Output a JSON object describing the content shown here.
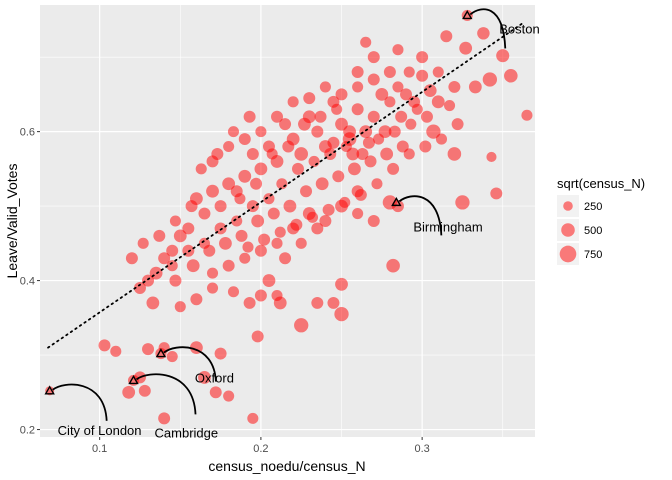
{
  "chart_data": {
    "type": "scatter",
    "xlabel": "census_noedu/census_N",
    "ylabel": "Leave/Valid_Votes",
    "xlim": [
      0.063,
      0.37
    ],
    "ylim": [
      0.19,
      0.77
    ],
    "x_ticks": [
      0.1,
      0.2,
      0.3
    ],
    "x_tick_labels": [
      "0.1",
      "0.2",
      "0.3"
    ],
    "y_ticks": [
      0.2,
      0.4,
      0.6
    ],
    "y_tick_labels": [
      "0.2",
      "0.4",
      "0.6"
    ],
    "grid": true,
    "point_color": "#ff0000",
    "point_opacity": 0.5,
    "background_color": "#ebebeb",
    "trend_line": {
      "style": "dotted",
      "color": "#000000",
      "from": [
        0.068,
        0.31
      ],
      "to": [
        0.362,
        0.745
      ]
    },
    "legend": {
      "title": "sqrt(census_N)",
      "placement": "right",
      "entries": [
        {
          "label": "250",
          "size_value": 250
        },
        {
          "label": "500",
          "size_value": 500
        },
        {
          "label": "750",
          "size_value": 750
        }
      ]
    },
    "annotations": [
      {
        "label": "Boston",
        "x": 0.328,
        "y": 0.756
      },
      {
        "label": "Birmingham",
        "x": 0.284,
        "y": 0.505
      },
      {
        "label": "Oxford",
        "x": 0.138,
        "y": 0.302
      },
      {
        "label": "Cambridge",
        "x": 0.121,
        "y": 0.266
      },
      {
        "label": "City of London",
        "x": 0.069,
        "y": 0.252
      }
    ],
    "points": [
      [
        0.328,
        0.756,
        300
      ],
      [
        0.315,
        0.728,
        350
      ],
      [
        0.327,
        0.712,
        400
      ],
      [
        0.338,
        0.732,
        380
      ],
      [
        0.35,
        0.702,
        420
      ],
      [
        0.355,
        0.675,
        450
      ],
      [
        0.342,
        0.67,
        500
      ],
      [
        0.333,
        0.66,
        400
      ],
      [
        0.365,
        0.622,
        300
      ],
      [
        0.343,
        0.566,
        250
      ],
      [
        0.346,
        0.517,
        350
      ],
      [
        0.325,
        0.505,
        500
      ],
      [
        0.32,
        0.57,
        450
      ],
      [
        0.307,
        0.6,
        500
      ],
      [
        0.31,
        0.64,
        400
      ],
      [
        0.32,
        0.66,
        350
      ],
      [
        0.31,
        0.68,
        300
      ],
      [
        0.3,
        0.7,
        350
      ],
      [
        0.292,
        0.68,
        300
      ],
      [
        0.305,
        0.655,
        400
      ],
      [
        0.295,
        0.64,
        350
      ],
      [
        0.285,
        0.66,
        300
      ],
      [
        0.28,
        0.68,
        350
      ],
      [
        0.275,
        0.65,
        400
      ],
      [
        0.27,
        0.62,
        350
      ],
      [
        0.265,
        0.6,
        400
      ],
      [
        0.26,
        0.63,
        350
      ],
      [
        0.255,
        0.59,
        450
      ],
      [
        0.25,
        0.61,
        400
      ],
      [
        0.245,
        0.64,
        350
      ],
      [
        0.24,
        0.58,
        400
      ],
      [
        0.235,
        0.6,
        350
      ],
      [
        0.23,
        0.62,
        400
      ],
      [
        0.225,
        0.57,
        450
      ],
      [
        0.22,
        0.59,
        400
      ],
      [
        0.215,
        0.61,
        350
      ],
      [
        0.21,
        0.56,
        400
      ],
      [
        0.205,
        0.58,
        350
      ],
      [
        0.2,
        0.55,
        400
      ],
      [
        0.195,
        0.57,
        350
      ],
      [
        0.19,
        0.54,
        400
      ],
      [
        0.185,
        0.52,
        350
      ],
      [
        0.18,
        0.53,
        400
      ],
      [
        0.175,
        0.5,
        350
      ],
      [
        0.17,
        0.52,
        400
      ],
      [
        0.165,
        0.49,
        350
      ],
      [
        0.16,
        0.51,
        400
      ],
      [
        0.155,
        0.47,
        350
      ],
      [
        0.15,
        0.46,
        400
      ],
      [
        0.145,
        0.44,
        350
      ],
      [
        0.14,
        0.43,
        350
      ],
      [
        0.135,
        0.41,
        400
      ],
      [
        0.13,
        0.4,
        350
      ],
      [
        0.125,
        0.39,
        350
      ],
      [
        0.133,
        0.37,
        400
      ],
      [
        0.147,
        0.4,
        350
      ],
      [
        0.158,
        0.42,
        400
      ],
      [
        0.168,
        0.44,
        350
      ],
      [
        0.178,
        0.45,
        400
      ],
      [
        0.188,
        0.46,
        350
      ],
      [
        0.198,
        0.48,
        400
      ],
      [
        0.208,
        0.49,
        350
      ],
      [
        0.218,
        0.5,
        400
      ],
      [
        0.228,
        0.52,
        350
      ],
      [
        0.238,
        0.53,
        400
      ],
      [
        0.248,
        0.54,
        350
      ],
      [
        0.258,
        0.55,
        400
      ],
      [
        0.268,
        0.56,
        350
      ],
      [
        0.278,
        0.57,
        400
      ],
      [
        0.288,
        0.58,
        350
      ],
      [
        0.213,
        0.53,
        300
      ],
      [
        0.223,
        0.55,
        350
      ],
      [
        0.233,
        0.56,
        300
      ],
      [
        0.243,
        0.57,
        350
      ],
      [
        0.253,
        0.58,
        300
      ],
      [
        0.263,
        0.57,
        350
      ],
      [
        0.273,
        0.59,
        300
      ],
      [
        0.283,
        0.6,
        350
      ],
      [
        0.293,
        0.61,
        300
      ],
      [
        0.303,
        0.62,
        350
      ],
      [
        0.2,
        0.6,
        300
      ],
      [
        0.21,
        0.62,
        350
      ],
      [
        0.22,
        0.64,
        300
      ],
      [
        0.23,
        0.645,
        350
      ],
      [
        0.24,
        0.66,
        300
      ],
      [
        0.25,
        0.65,
        350
      ],
      [
        0.26,
        0.66,
        300
      ],
      [
        0.27,
        0.67,
        350
      ],
      [
        0.28,
        0.64,
        300
      ],
      [
        0.29,
        0.65,
        350
      ],
      [
        0.205,
        0.51,
        300
      ],
      [
        0.195,
        0.5,
        350
      ],
      [
        0.185,
        0.48,
        300
      ],
      [
        0.175,
        0.47,
        350
      ],
      [
        0.165,
        0.45,
        300
      ],
      [
        0.155,
        0.44,
        350
      ],
      [
        0.145,
        0.42,
        300
      ],
      [
        0.17,
        0.56,
        350
      ],
      [
        0.18,
        0.58,
        300
      ],
      [
        0.19,
        0.59,
        350
      ],
      [
        0.24,
        0.48,
        350
      ],
      [
        0.25,
        0.5,
        400
      ],
      [
        0.26,
        0.52,
        350
      ],
      [
        0.23,
        0.49,
        400
      ],
      [
        0.22,
        0.47,
        350
      ],
      [
        0.21,
        0.45,
        300
      ],
      [
        0.2,
        0.44,
        350
      ],
      [
        0.19,
        0.43,
        300
      ],
      [
        0.18,
        0.42,
        350
      ],
      [
        0.17,
        0.41,
        300
      ],
      [
        0.205,
        0.4,
        400
      ],
      [
        0.215,
        0.43,
        350
      ],
      [
        0.225,
        0.45,
        300
      ],
      [
        0.235,
        0.47,
        350
      ],
      [
        0.163,
        0.55,
        300
      ],
      [
        0.173,
        0.57,
        350
      ],
      [
        0.183,
        0.6,
        300
      ],
      [
        0.193,
        0.62,
        350
      ],
      [
        0.227,
        0.61,
        400
      ],
      [
        0.237,
        0.62,
        350
      ],
      [
        0.247,
        0.63,
        300
      ],
      [
        0.217,
        0.58,
        350
      ],
      [
        0.207,
        0.57,
        300
      ],
      [
        0.197,
        0.53,
        350
      ],
      [
        0.187,
        0.51,
        300
      ],
      [
        0.157,
        0.5,
        350
      ],
      [
        0.147,
        0.48,
        300
      ],
      [
        0.137,
        0.46,
        350
      ],
      [
        0.127,
        0.45,
        300
      ],
      [
        0.12,
        0.43,
        350
      ],
      [
        0.27,
        0.7,
        350
      ],
      [
        0.265,
        0.72,
        300
      ],
      [
        0.26,
        0.68,
        350
      ],
      [
        0.285,
        0.71,
        300
      ],
      [
        0.3,
        0.675,
        350
      ],
      [
        0.277,
        0.6,
        400
      ],
      [
        0.287,
        0.62,
        350
      ],
      [
        0.297,
        0.63,
        300
      ],
      [
        0.267,
        0.585,
        350
      ],
      [
        0.257,
        0.57,
        400
      ],
      [
        0.317,
        0.635,
        300
      ],
      [
        0.322,
        0.61,
        350
      ],
      [
        0.312,
        0.59,
        300
      ],
      [
        0.302,
        0.58,
        350
      ],
      [
        0.292,
        0.57,
        300
      ],
      [
        0.282,
        0.55,
        350
      ],
      [
        0.272,
        0.53,
        300
      ],
      [
        0.262,
        0.515,
        350
      ],
      [
        0.252,
        0.505,
        300
      ],
      [
        0.242,
        0.495,
        350
      ],
      [
        0.232,
        0.485,
        300
      ],
      [
        0.222,
        0.475,
        350
      ],
      [
        0.212,
        0.465,
        300
      ],
      [
        0.202,
        0.455,
        350
      ],
      [
        0.192,
        0.445,
        300
      ],
      [
        0.2,
        0.38,
        350
      ],
      [
        0.212,
        0.37,
        400
      ],
      [
        0.225,
        0.34,
        500
      ],
      [
        0.235,
        0.37,
        350
      ],
      [
        0.25,
        0.355,
        500
      ],
      [
        0.25,
        0.395,
        400
      ],
      [
        0.245,
        0.37,
        350
      ],
      [
        0.17,
        0.39,
        300
      ],
      [
        0.16,
        0.375,
        350
      ],
      [
        0.15,
        0.365,
        300
      ],
      [
        0.21,
        0.38,
        300
      ],
      [
        0.193,
        0.37,
        350
      ],
      [
        0.183,
        0.385,
        300
      ],
      [
        0.245,
        0.585,
        350
      ],
      [
        0.255,
        0.6,
        400
      ],
      [
        0.282,
        0.42,
        450
      ],
      [
        0.27,
        0.48,
        350
      ],
      [
        0.26,
        0.49,
        300
      ],
      [
        0.28,
        0.505,
        500
      ],
      [
        0.285,
        0.5,
        350
      ],
      [
        0.103,
        0.313,
        350
      ],
      [
        0.11,
        0.305,
        300
      ],
      [
        0.13,
        0.308,
        350
      ],
      [
        0.14,
        0.31,
        300
      ],
      [
        0.16,
        0.31,
        400
      ],
      [
        0.175,
        0.302,
        350
      ],
      [
        0.145,
        0.298,
        300
      ],
      [
        0.138,
        0.302,
        300
      ],
      [
        0.121,
        0.266,
        300
      ],
      [
        0.125,
        0.27,
        350
      ],
      [
        0.118,
        0.25,
        400
      ],
      [
        0.128,
        0.252,
        350
      ],
      [
        0.165,
        0.27,
        400
      ],
      [
        0.172,
        0.25,
        350
      ],
      [
        0.18,
        0.245,
        300
      ],
      [
        0.14,
        0.215,
        350
      ],
      [
        0.195,
        0.215,
        300
      ],
      [
        0.198,
        0.325,
        350
      ],
      [
        0.069,
        0.252,
        200
      ]
    ]
  }
}
